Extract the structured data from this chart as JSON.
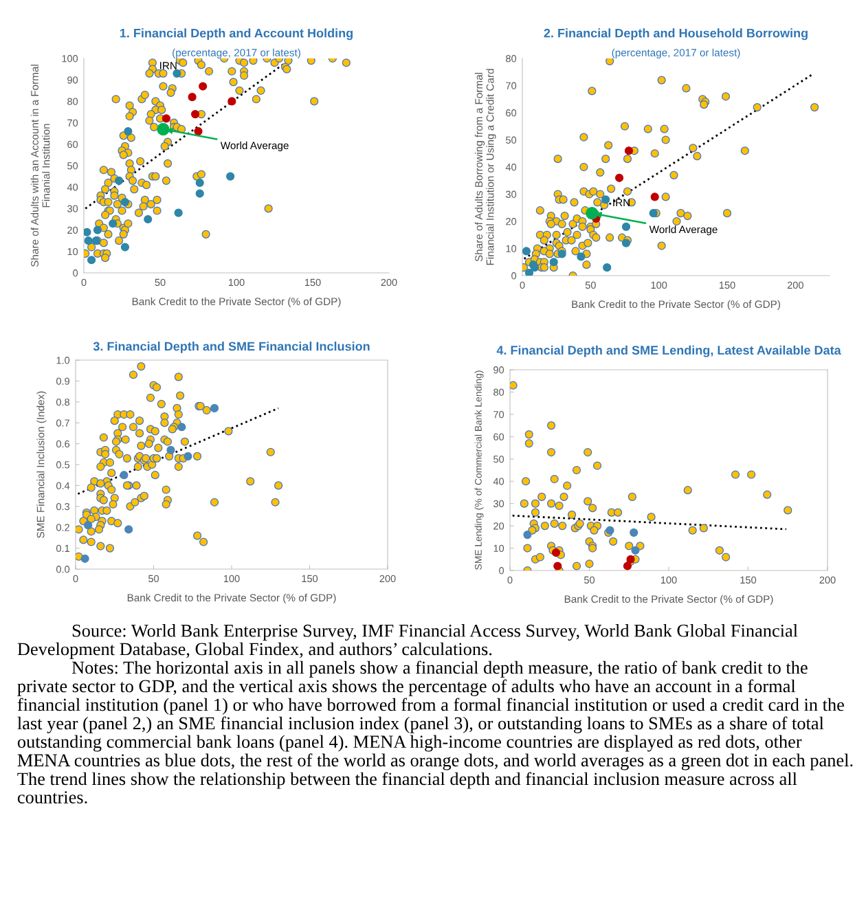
{
  "chart_data": [
    {
      "type": "scatter",
      "title": "1. Financial Depth and Account Holding",
      "subtitle": "(percentage, 2017 or latest)",
      "xlabel": "Bank Credit to the Private Sector (% of GDP)",
      "ylabel": "Share of Adults with an Account in a Formal\nFinanial Institution",
      "xlim": [
        0,
        200
      ],
      "xticks": [
        0,
        50,
        100,
        150,
        200
      ],
      "ylim": [
        0,
        100
      ],
      "yticks": [
        0,
        10,
        20,
        30,
        40,
        50,
        60,
        70,
        80,
        90,
        100
      ],
      "marker": "circle",
      "series": [
        {
          "color": "#ffc000",
          "x": [
            45,
            45,
            43,
            49,
            52,
            63,
            65,
            64,
            75,
            77,
            82,
            92,
            97,
            102,
            105,
            105,
            105,
            98,
            102,
            111,
            120,
            125,
            128,
            134,
            132,
            133,
            149,
            163,
            172,
            151,
            116,
            113,
            52,
            58,
            57,
            21,
            38,
            40,
            47,
            50,
            47,
            51,
            30,
            32,
            30,
            44,
            43,
            50,
            59,
            46,
            59,
            61,
            64,
            77,
            26,
            31,
            27,
            25,
            29,
            26,
            55,
            53,
            55,
            37,
            30,
            31,
            13,
            18,
            20,
            30,
            32,
            16,
            14,
            20,
            20,
            33,
            38,
            41,
            45,
            47,
            54,
            74,
            77,
            11,
            11,
            13,
            16,
            25,
            29,
            22,
            16,
            17,
            14,
            25,
            36,
            40,
            39,
            44,
            48,
            48,
            21,
            22,
            10,
            13,
            26,
            27,
            29,
            16,
            26,
            23,
            9,
            13,
            5,
            1,
            9,
            13,
            15,
            14,
            121,
            80
          ],
          "values": [
            98,
            95,
            93,
            93,
            93,
            99,
            98,
            93,
            99,
            97,
            94,
            100,
            94,
            99,
            98,
            94,
            92,
            89,
            85,
            99,
            100,
            98,
            100,
            99,
            96,
            95,
            99,
            100,
            98,
            80,
            85,
            81,
            87,
            86,
            84,
            81,
            81,
            83,
            80,
            78,
            76,
            76,
            78,
            75,
            73,
            74,
            71,
            72,
            70,
            68,
            68,
            68,
            67,
            74,
            64,
            63,
            59,
            57,
            56,
            55,
            61,
            59,
            51,
            52,
            51,
            48,
            48,
            47,
            44,
            45,
            43,
            42,
            39,
            38,
            36,
            39,
            42,
            41,
            45,
            45,
            43,
            45,
            46,
            36,
            34,
            33,
            33,
            35,
            32,
            32,
            29,
            29,
            27,
            29,
            28,
            34,
            31,
            32,
            34,
            29,
            25,
            23,
            23,
            21,
            21,
            20,
            23,
            18,
            18,
            15,
            15,
            14,
            12,
            9,
            9,
            9,
            9,
            7,
            30,
            18
          ]
        },
        {
          "color": "#2e86a8",
          "x": [
            29,
            23,
            27,
            19,
            9,
            2,
            3,
            8,
            27,
            5,
            42,
            62,
            76,
            76,
            96,
            61
          ],
          "values": [
            66,
            43,
            33,
            23,
            20,
            19,
            15,
            15,
            12,
            6,
            25,
            28,
            42,
            37,
            45,
            93
          ]
        },
        {
          "color": "#c00000",
          "x": [
            78,
            71,
            97,
            73,
            54,
            75
          ],
          "values": [
            87,
            82,
            80,
            74,
            72,
            66
          ]
        },
        {
          "color": "#00b050",
          "x": [
            52
          ],
          "values": [
            67
          ]
        },
        {
          "type": "line",
          "marker": "none",
          "color": "#000000",
          "line_style": "dotted",
          "x": [
            1,
            135
          ],
          "values": [
            30,
            99.5
          ]
        }
      ],
      "annotations": [
        {
          "text": "IRN",
          "x": 45,
          "y": 98
        },
        {
          "text": "World Average",
          "x": 52,
          "y": 67
        }
      ]
    },
    {
      "type": "scatter",
      "title": "2. Financial Depth and Household Borrowing",
      "subtitle": "(percentage, 2017 or latest)",
      "xlabel": "Bank Credit to the Private Sector (% of GDP)",
      "ylabel": "Share of Adults Borrowing from a Formal\nFinancial Institution or Using a Credit Card",
      "xlim": [
        0,
        225
      ],
      "xticks": [
        0,
        50,
        100,
        150,
        200
      ],
      "ylim": [
        0,
        80
      ],
      "yticks": [
        0,
        10,
        20,
        30,
        40,
        50,
        60,
        70,
        80
      ],
      "marker": "circle",
      "series": [
        {
          "color": "#ffc000",
          "x": [
            64,
            102,
            120,
            51,
            149,
            132,
            134,
            133,
            172,
            214,
            75,
            92,
            104,
            105,
            45,
            63,
            82,
            97,
            125,
            128,
            163,
            26,
            61,
            77,
            45,
            57,
            111,
            65,
            77,
            105,
            26,
            45,
            49,
            52,
            57,
            27,
            30,
            38,
            55,
            60,
            80,
            13,
            46,
            116,
            121,
            150,
            98,
            113,
            21,
            31,
            20,
            25,
            21,
            29,
            37,
            40,
            44,
            50,
            54,
            44,
            33,
            40,
            25,
            13,
            18,
            50,
            52,
            54,
            32,
            36,
            16,
            44,
            48,
            25,
            27,
            20,
            11,
            64,
            73,
            77,
            102,
            10,
            16,
            20,
            26,
            29,
            39,
            47,
            5,
            9,
            13,
            16,
            1,
            14,
            16,
            23,
            47,
            37
          ],
          "values": [
            79,
            72,
            69,
            68,
            66,
            65,
            64,
            63,
            62,
            62,
            55,
            54,
            54,
            50,
            51,
            48,
            46,
            45,
            47,
            44,
            46,
            43,
            43,
            43,
            40,
            38,
            37,
            32,
            31,
            29,
            30,
            31,
            30,
            31,
            30,
            28,
            28,
            27,
            27,
            26,
            27,
            24,
            24,
            23,
            22,
            23,
            23,
            20,
            22,
            22,
            20,
            20,
            19,
            19,
            19,
            21,
            20,
            18,
            19,
            18,
            16,
            15,
            15,
            15,
            15,
            17,
            15,
            14,
            13,
            13,
            13,
            11,
            12,
            12,
            11,
            10,
            10,
            14,
            14,
            13,
            11,
            8,
            9,
            8,
            8,
            9,
            9,
            8,
            5,
            6,
            5,
            5,
            3,
            3,
            3,
            3,
            4,
            0
          ]
        },
        {
          "color": "#2e86a8",
          "x": [
            3,
            8,
            9,
            5,
            23,
            29,
            43,
            62,
            76,
            76,
            96,
            61
          ],
          "values": [
            9,
            4,
            3,
            1,
            5,
            8,
            7,
            3,
            12,
            18,
            23,
            28
          ]
        },
        {
          "color": "#c00000",
          "x": [
            78,
            71,
            97,
            54
          ],
          "values": [
            46,
            36,
            29,
            21
          ]
        },
        {
          "color": "#00b050",
          "x": [
            51
          ],
          "values": [
            23
          ]
        },
        {
          "type": "line",
          "marker": "none",
          "color": "#000000",
          "line_style": "dotted",
          "x": [
            1.3,
            213
          ],
          "values": [
            6.2,
            74.3
          ]
        }
      ],
      "annotations": [
        {
          "text": "IRN",
          "x": 61,
          "y": 28
        },
        {
          "text": "World Average",
          "x": 51,
          "y": 23
        }
      ]
    },
    {
      "type": "scatter",
      "title": "3. Financial Depth and SME Financial Inclusion",
      "xlabel": "Bank Credit to the Private Sector (% of GDP)",
      "ylabel": "SME Financial Inclusion (Index)",
      "xlim": [
        0,
        200
      ],
      "xticks": [
        0,
        50,
        100,
        150,
        200
      ],
      "ylim": [
        0,
        1.0
      ],
      "yticks": [
        {
          "value": 0,
          "label": "0.0"
        },
        0.1,
        0.2,
        0.3,
        0.4,
        0.5,
        0.6,
        0.7,
        0.8,
        0.9,
        {
          "value": 1,
          "label": "1.0"
        }
      ],
      "marker": "circle",
      "series": [
        {
          "color": "#ffc000",
          "x": [
            42,
            37,
            66,
            50,
            52,
            67,
            48,
            55,
            79,
            80,
            84,
            65,
            57,
            66,
            27,
            31,
            35,
            25,
            41,
            57,
            65,
            63,
            62,
            30,
            37,
            41,
            48,
            51,
            27,
            98,
            18,
            27,
            26,
            32,
            48,
            47,
            57,
            59,
            70,
            42,
            53,
            26,
            28,
            16,
            19,
            19,
            33,
            40,
            41,
            44,
            45,
            46,
            49,
            50,
            52,
            60,
            66,
            69,
            78,
            66,
            51,
            40,
            125,
            18,
            22,
            16,
            23,
            12,
            20,
            16,
            21,
            10,
            34,
            33,
            39,
            23,
            16,
            16,
            18,
            25,
            24,
            35,
            38,
            42,
            44,
            58,
            59,
            58,
            89,
            112,
            130,
            128,
            7,
            7,
            12,
            17,
            20,
            13,
            17,
            5,
            10,
            16,
            15,
            10,
            23,
            27,
            2,
            5,
            10,
            16,
            22,
            2,
            78,
            82
          ],
          "values": [
            0.97,
            0.93,
            0.92,
            0.88,
            0.87,
            0.83,
            0.82,
            0.79,
            0.78,
            0.78,
            0.76,
            0.77,
            0.73,
            0.74,
            0.74,
            0.74,
            0.74,
            0.71,
            0.71,
            0.7,
            0.7,
            0.68,
            0.67,
            0.68,
            0.68,
            0.65,
            0.67,
            0.66,
            0.65,
            0.66,
            0.63,
            0.62,
            0.61,
            0.62,
            0.62,
            0.6,
            0.62,
            0.61,
            0.61,
            0.59,
            0.58,
            0.57,
            0.55,
            0.56,
            0.57,
            0.55,
            0.53,
            0.53,
            0.54,
            0.52,
            0.53,
            0.49,
            0.5,
            0.53,
            0.53,
            0.54,
            0.53,
            0.53,
            0.54,
            0.49,
            0.45,
            0.49,
            0.56,
            0.51,
            0.51,
            0.49,
            0.46,
            0.42,
            0.42,
            0.41,
            0.4,
            0.39,
            0.4,
            0.4,
            0.4,
            0.38,
            0.36,
            0.34,
            0.33,
            0.34,
            0.31,
            0.3,
            0.32,
            0.34,
            0.35,
            0.38,
            0.33,
            0.31,
            0.32,
            0.42,
            0.4,
            0.32,
            0.27,
            0.26,
            0.28,
            0.28,
            0.28,
            0.25,
            0.23,
            0.23,
            0.24,
            0.21,
            0.19,
            0.18,
            0.23,
            0.22,
            0.19,
            0.14,
            0.13,
            0.11,
            0.1,
            0.06,
            0.16,
            0.13
          ]
        },
        {
          "color": "#4a86b8",
          "x": [
            89,
            68,
            61,
            72,
            31,
            8,
            34,
            6
          ],
          "values": [
            0.77,
            0.68,
            0.57,
            0.54,
            0.45,
            0.21,
            0.19,
            0.05
          ]
        },
        {
          "type": "line",
          "marker": "none",
          "color": "#000000",
          "line_style": "dotted",
          "x": [
            1.5,
            130
          ],
          "values": [
            0.36,
            0.77
          ]
        }
      ]
    },
    {
      "type": "scatter",
      "title": "4. Financial Depth and SME Lending, Latest Available Data",
      "xlabel": "Bank Credit to the Private Sector (% of GDP)",
      "ylabel": "SME Lending (% of Commercial Bank Lending)",
      "xlim": [
        0,
        200
      ],
      "xticks": [
        0,
        50,
        100,
        150,
        200
      ],
      "ylim": [
        0,
        90
      ],
      "yticks": [
        0,
        10,
        20,
        30,
        40,
        50,
        60,
        70,
        80,
        90
      ],
      "marker": "circle",
      "series": [
        {
          "color": "#ffc000",
          "x": [
            2,
            26,
            12,
            12,
            26,
            49,
            55,
            42,
            28,
            10,
            36,
            20,
            34,
            9,
            16,
            26,
            31,
            49,
            52,
            77,
            16,
            39,
            64,
            68,
            89,
            112,
            142,
            152,
            162,
            175,
            15,
            16,
            14,
            22,
            28,
            33,
            41,
            43,
            44,
            51,
            55,
            53,
            115,
            122,
            62,
            11,
            26,
            27,
            31,
            32,
            50,
            52,
            52,
            65,
            75,
            82,
            16,
            19,
            11,
            31,
            42,
            50,
            76,
            79,
            132,
            136
          ],
          "values": [
            83,
            65,
            61,
            57,
            53,
            53,
            47,
            45,
            41,
            40,
            38,
            33,
            33,
            30,
            30,
            30,
            29,
            31,
            28,
            33,
            26,
            25,
            26,
            26,
            24,
            36,
            43,
            43,
            34,
            27,
            21,
            19,
            18,
            20,
            21,
            20,
            19,
            20,
            21,
            20,
            20,
            18,
            18,
            19,
            17,
            10,
            11,
            9,
            9,
            7,
            13,
            11,
            10,
            13,
            11,
            11,
            5,
            6,
            0,
            0,
            2,
            3,
            4,
            5,
            9,
            6
          ]
        },
        {
          "color": "#4a86b8",
          "x": [
            11,
            63,
            78,
            79
          ],
          "values": [
            16,
            18,
            17,
            9
          ]
        },
        {
          "color": "#c00000",
          "x": [
            29,
            30,
            76,
            74
          ],
          "values": [
            8,
            2,
            5,
            2
          ]
        },
        {
          "type": "line",
          "marker": "none",
          "color": "#000000",
          "line_style": "dotted",
          "x": [
            1.6,
            174
          ],
          "values": [
            24.6,
            18.5
          ]
        }
      ],
      "annotations": [
        "Source: World Bank Enterprise Survey, IMF Financial Access Survey, World Bank Global Financial Development Database, Global Findex, and authors’ calculations.",
        "Notes: The horizontal axis in all panels show a financial depth measure, the ratio of bank credit to the private sector to GDP, and the vertical axis shows the percentage of adults who have an account in a formal financial institution (panel 1) or who have borrowed from a formal financial institution or used a credit card in the last year (panel 2,) an SME financial inclusion index (panel 3), or outstanding loans to SMEs as a share of total outstanding commercial bank loans (panel 4). MENA high-income countries are displayed as red dots, other MENA countries as blue dots, the rest of the world as orange dots, and world averages as a green dot in each panel. The trend lines show the relationship between the financial depth and financial inclusion measure across all countries."
      ]
    }
  ]
}
